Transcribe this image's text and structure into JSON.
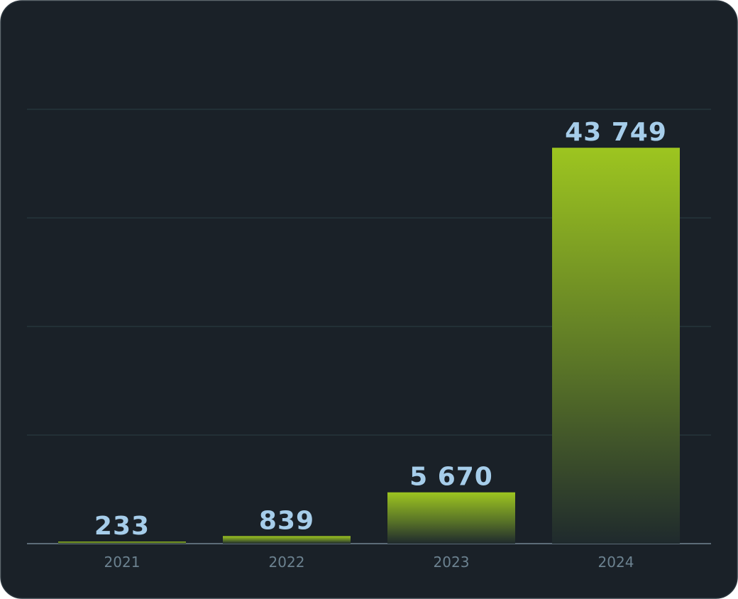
{
  "chart_data": {
    "type": "bar",
    "categories": [
      "2021",
      "2022",
      "2023",
      "2024"
    ],
    "values": [
      233,
      839,
      5670,
      43749
    ],
    "value_labels": [
      "233",
      "839",
      "5 670",
      "43 749"
    ],
    "color": "#9dc520",
    "ylim": [
      0,
      48000
    ],
    "yticks": [
      0,
      12000,
      24000,
      36000,
      48000
    ],
    "grid": true
  }
}
